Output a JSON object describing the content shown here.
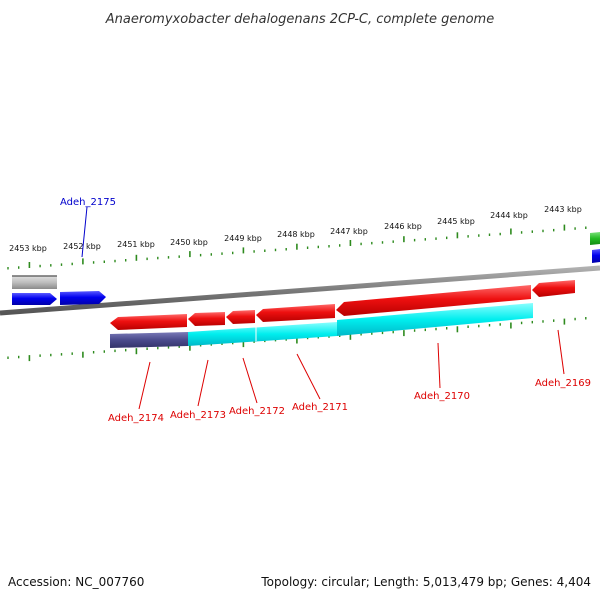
{
  "title": "Anaeromyxobacter dehalogenans 2CP-C, complete genome",
  "accession": "Accession: NC_007760",
  "summary": "Topology: circular; Length: 5,013,479 bp; Genes: 4,404",
  "scale_labels": [
    "2453 kbp",
    "2452 kbp",
    "2451 kbp",
    "2450 kbp",
    "2449 kbp",
    "2448 kbp",
    "2447 kbp",
    "2446 kbp",
    "2445 kbp",
    "2444 kbp",
    "2443 kbp"
  ],
  "gene_labels": [
    {
      "name": "Adeh_2175",
      "color": "#0000cc"
    },
    {
      "name": "Adeh_2174",
      "color": "#dd0000"
    },
    {
      "name": "Adeh_2173",
      "color": "#dd0000"
    },
    {
      "name": "Adeh_2172",
      "color": "#dd0000"
    },
    {
      "name": "Adeh_2171",
      "color": "#dd0000"
    },
    {
      "name": "Adeh_2170",
      "color": "#dd0000"
    },
    {
      "name": "Adeh_2169",
      "color": "#dd0000"
    }
  ],
  "colors": {
    "backbone": "#808080",
    "tick": "#2e8b1e",
    "forward_gene": "#0000ee",
    "reverse_gene": "#ee0000",
    "cds_cyan": "#00eeee",
    "cds_navy": "#4a4a8c",
    "gray_feature": "#b8b8b8",
    "green_feature": "#22bb22"
  }
}
